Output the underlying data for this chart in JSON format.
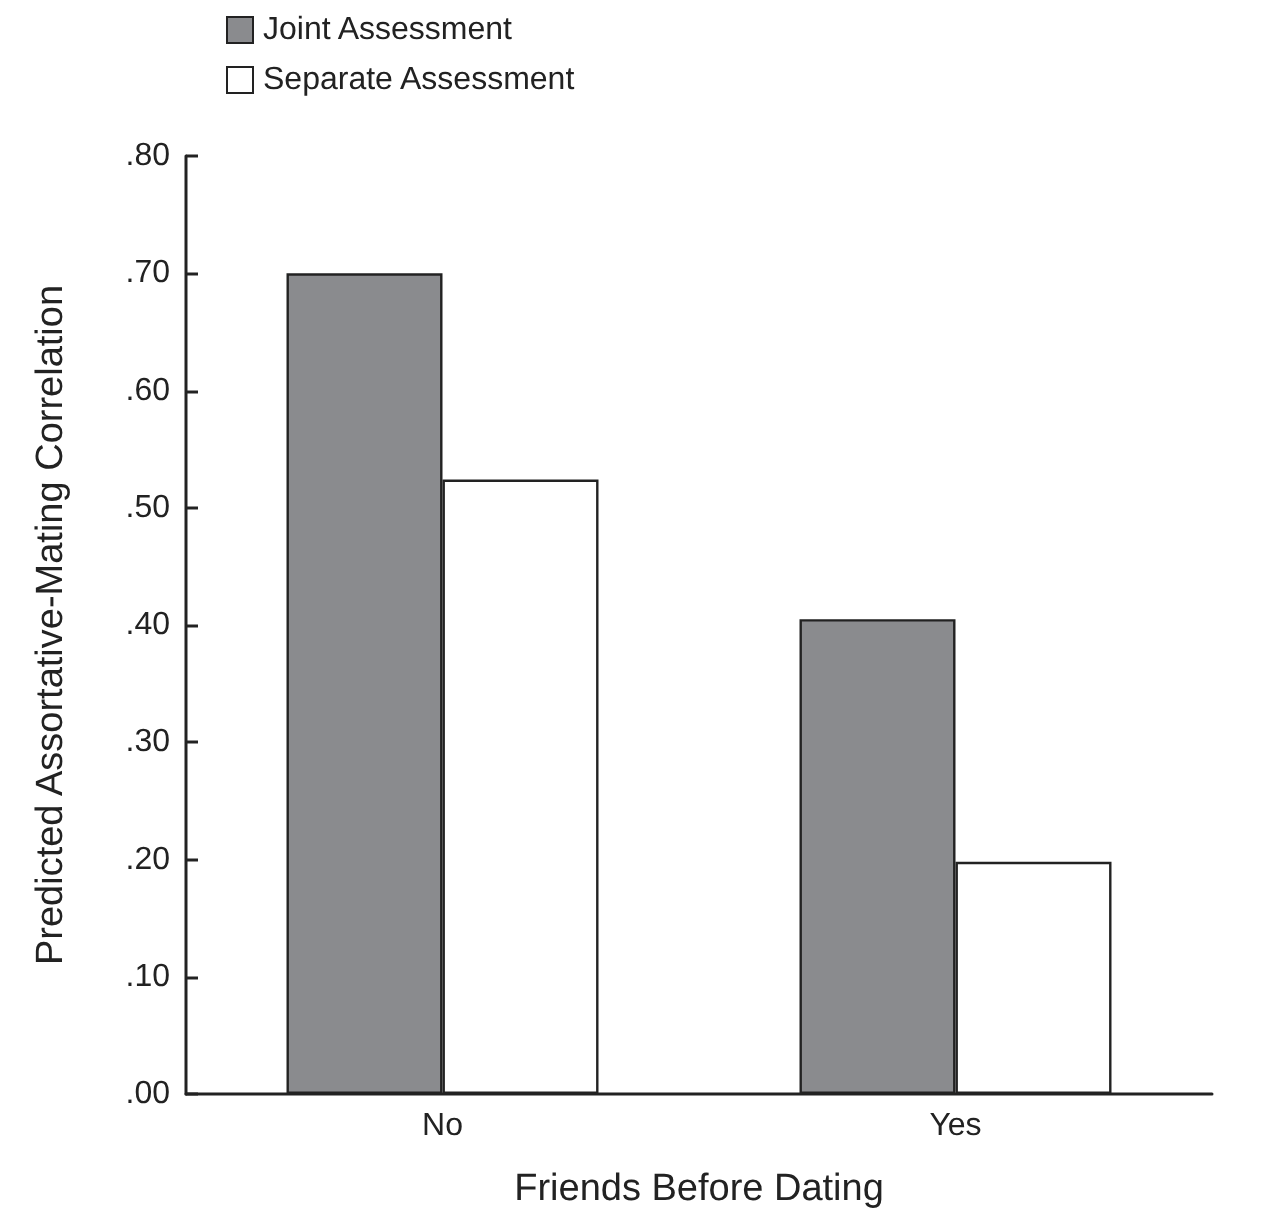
{
  "chart_data": {
    "type": "bar",
    "xlabel": "Friends Before Dating",
    "ylabel": "Predicted Assortative-Mating Correlation",
    "categories": [
      "No",
      "Yes"
    ],
    "series": [
      {
        "name": "Joint Assessment",
        "color": "#8a8b8e",
        "values": [
          0.7,
          0.405
        ]
      },
      {
        "name": "Separate Assessment",
        "color": "#ffffff",
        "values": [
          0.524,
          0.198
        ]
      }
    ],
    "ylim": [
      0,
      0.8
    ],
    "yticks": [
      {
        "value": 0,
        "label": ".00"
      },
      {
        "value": 0.1,
        "label": ".10"
      },
      {
        "value": 0.2,
        "label": ".20"
      },
      {
        "value": 0.3,
        "label": ".30"
      },
      {
        "value": 0.4,
        "label": ".40"
      },
      {
        "value": 0.5,
        "label": ".50"
      },
      {
        "value": 0.6,
        "label": ".60"
      },
      {
        "value": 0.7,
        "label": ".70"
      },
      {
        "value": 0.8,
        "label": ".80"
      }
    ],
    "grid": false,
    "legend": "top left"
  }
}
